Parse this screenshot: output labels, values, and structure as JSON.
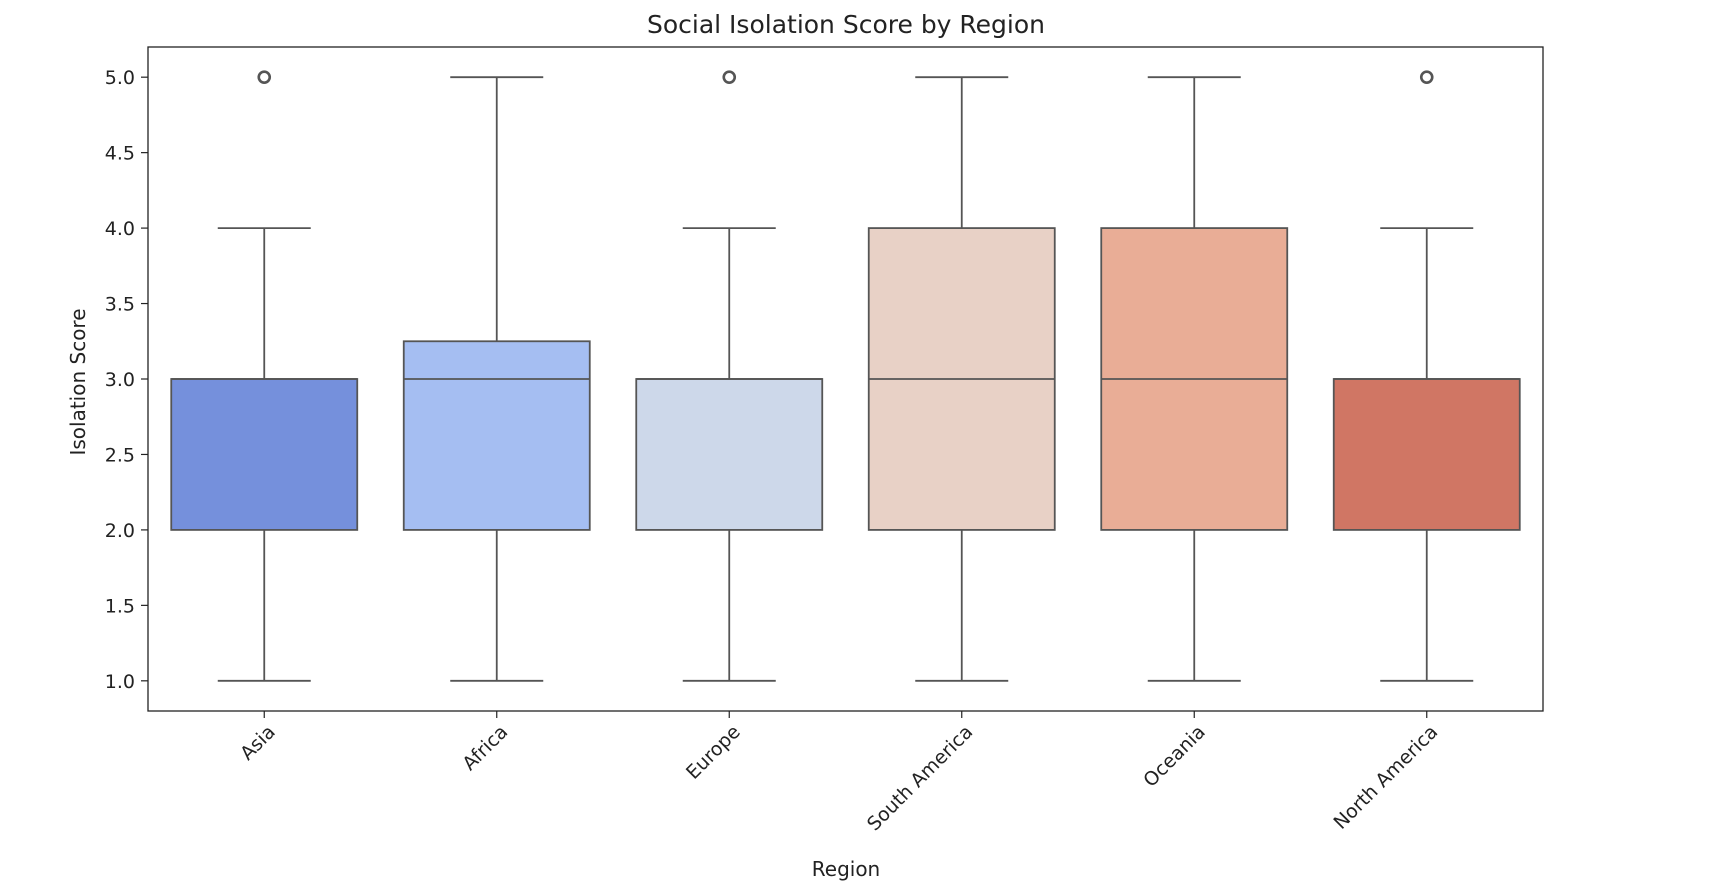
{
  "chart_data": {
    "type": "box",
    "title": "Social Isolation Score by Region",
    "xlabel": "Region",
    "ylabel": "Isolation Score",
    "ylim": [
      0.8,
      5.2
    ],
    "yticks": [
      1.0,
      1.5,
      2.0,
      2.5,
      3.0,
      3.5,
      4.0,
      4.5,
      5.0
    ],
    "ytick_labels": [
      "1.0",
      "1.5",
      "2.0",
      "2.5",
      "3.0",
      "3.5",
      "4.0",
      "4.5",
      "5.0"
    ],
    "grid": false,
    "legend": "none",
    "categories": [
      "Asia",
      "Africa",
      "Europe",
      "South America",
      "Oceania",
      "North America"
    ],
    "boxes": [
      {
        "category": "Asia",
        "whislo": 1.0,
        "q1": 2.0,
        "med": 3.0,
        "q3": 3.0,
        "whishi": 4.0,
        "fliers": [
          5.0
        ],
        "color": "#7590dc"
      },
      {
        "category": "Africa",
        "whislo": 1.0,
        "q1": 2.0,
        "med": 3.0,
        "q3": 3.25,
        "whishi": 5.0,
        "fliers": [],
        "color": "#a5bef2"
      },
      {
        "category": "Europe",
        "whislo": 1.0,
        "q1": 2.0,
        "med": 3.0,
        "q3": 3.0,
        "whishi": 4.0,
        "fliers": [
          5.0
        ],
        "color": "#cdd8ea"
      },
      {
        "category": "South America",
        "whislo": 1.0,
        "q1": 2.0,
        "med": 3.0,
        "q3": 4.0,
        "whishi": 5.0,
        "fliers": [],
        "color": "#e8d1c6"
      },
      {
        "category": "Oceania",
        "whislo": 1.0,
        "q1": 2.0,
        "med": 3.0,
        "q3": 4.0,
        "whishi": 5.0,
        "fliers": [],
        "color": "#e9ad96"
      },
      {
        "category": "North America",
        "whislo": 1.0,
        "q1": 2.0,
        "med": 3.0,
        "q3": 3.0,
        "whishi": 4.0,
        "fliers": [
          5.0
        ],
        "color": "#d07664"
      }
    ],
    "line_color": "#555555"
  }
}
